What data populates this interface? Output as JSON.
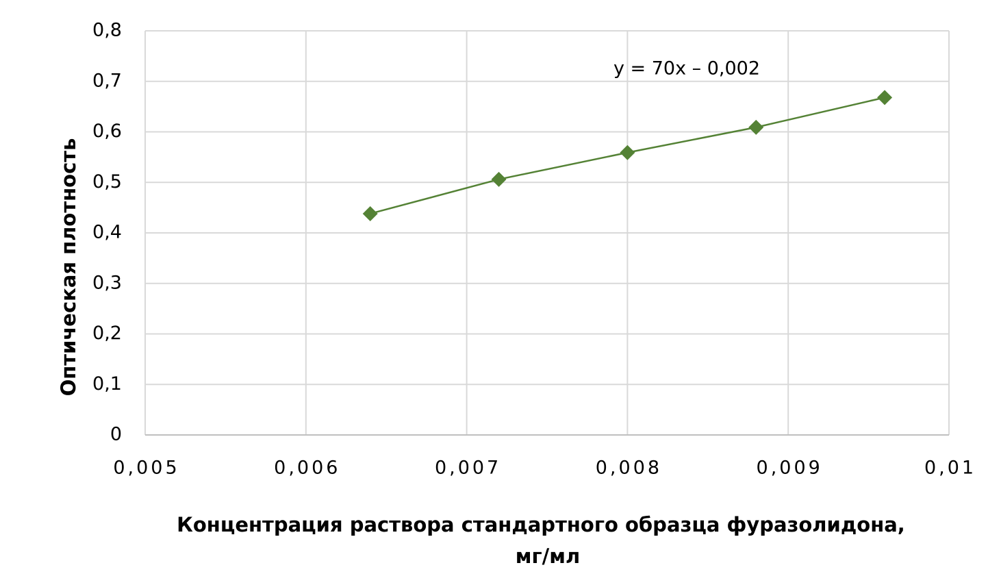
{
  "chart_data": {
    "type": "scatter",
    "annotation": "y = 70x – 0,002",
    "xlabel": [
      "Концентрация  раствора  стандартного  образца фуразолидона,",
      "мг/мл"
    ],
    "ylabel": "Оптическая  плотность",
    "x": [
      0.0064,
      0.0072,
      0.008,
      0.0088,
      0.0096
    ],
    "series": [
      {
        "color": "#548235",
        "values": [
          0.438,
          0.506,
          0.559,
          0.609,
          0.668
        ]
      }
    ],
    "xlim": [
      0.005,
      0.01
    ],
    "xticks": [
      {
        "value": 0.005,
        "label": "0,005"
      },
      {
        "value": 0.006,
        "label": "0,006"
      },
      {
        "value": 0.007,
        "label": "0,007"
      },
      {
        "value": 0.008,
        "label": "0,008"
      },
      {
        "value": 0.009,
        "label": "0,009"
      },
      {
        "value": 0.01,
        "label": "0,01"
      }
    ],
    "ylim": [
      0,
      0.8
    ],
    "yticks": [
      0,
      {
        "value": 0.1,
        "label": "0,1"
      },
      {
        "value": 0.2,
        "label": "0,2"
      },
      {
        "value": 0.3,
        "label": "0,3"
      },
      {
        "value": 0.4,
        "label": "0,4"
      },
      {
        "value": 0.5,
        "label": "0,5"
      },
      {
        "value": 0.6,
        "label": "0,6"
      },
      {
        "value": 0.7,
        "label": "0,7"
      },
      {
        "value": 0.8,
        "label": "0,8"
      }
    ],
    "grid": true
  }
}
